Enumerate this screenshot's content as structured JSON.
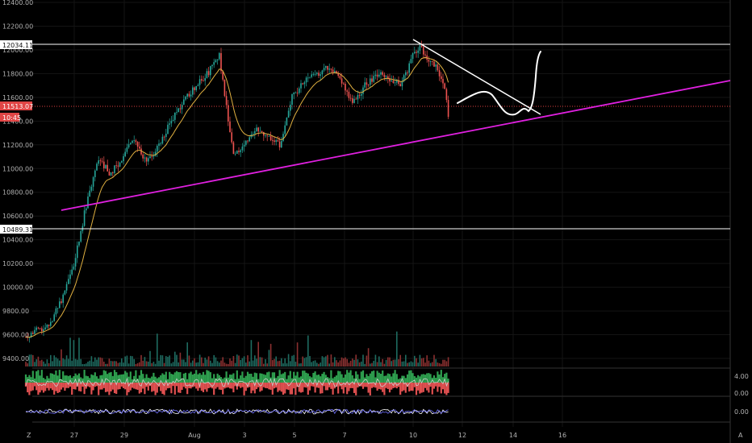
{
  "chart_data": {
    "type": "candlestick",
    "y_ticks": [
      "12400.00",
      "12200.00",
      "12000.00",
      "11800.00",
      "11600.00",
      "11400.00",
      "11200.00",
      "11000.00",
      "10800.00",
      "10600.00",
      "10400.00",
      "10200.00",
      "10000.00",
      "9800.00",
      "9600.00",
      "9400.00"
    ],
    "x_ticks": [
      "27",
      "29",
      "Aug",
      "3",
      "5",
      "7",
      "10",
      "12",
      "14",
      "16"
    ],
    "level_labels": {
      "upper": "12034.11",
      "current": "11513.07",
      "timer": "10:45",
      "lower": "10489.31"
    },
    "indicator1_ticks": [
      "4.00",
      "0.00"
    ],
    "indicator2_ticks": [
      "0.00"
    ],
    "corner_labels": {
      "left": "Z",
      "right": "A"
    },
    "price_path": [
      [
        "Jul 25",
        9580
      ],
      [
        "Jul 26",
        9700
      ],
      [
        "Jul 26.5",
        9900
      ],
      [
        "Jul 27",
        10200
      ],
      [
        "Jul 27.5",
        10700
      ],
      [
        "Jul 28",
        11100
      ],
      [
        "Jul 28.5",
        10950
      ],
      [
        "Jul 29",
        11100
      ],
      [
        "Jul 29.5",
        11250
      ],
      [
        "Jul 30",
        11050
      ],
      [
        "Jul 30.5",
        11200
      ],
      [
        "Jul 31",
        11400
      ],
      [
        "Aug 1",
        11700
      ],
      [
        "Aug 1.5",
        11800
      ],
      [
        "Aug 2",
        11950
      ],
      [
        "Aug 2.3",
        11500
      ],
      [
        "Aug 2.6",
        11100
      ],
      [
        "Aug 3",
        11200
      ],
      [
        "Aug 3.5",
        11350
      ],
      [
        "Aug 4",
        11250
      ],
      [
        "Aug 4.5",
        11200
      ],
      [
        "Aug 5",
        11600
      ],
      [
        "Aug 5.5",
        11750
      ],
      [
        "Aug 6",
        11800
      ],
      [
        "Aug 6.5",
        11850
      ],
      [
        "Aug 7",
        11750
      ],
      [
        "Aug 7.5",
        11550
      ],
      [
        "Aug 8",
        11700
      ],
      [
        "Aug 8.5",
        11800
      ],
      [
        "Aug 9",
        11750
      ],
      [
        "Aug 9.5",
        11700
      ],
      [
        "Aug 10",
        11950
      ],
      [
        "Aug 10.3",
        12050
      ],
      [
        "Aug 10.6",
        11900
      ],
      [
        "Aug 11",
        11850
      ],
      [
        "Aug 11.3",
        11700
      ],
      [
        "Aug 11.5",
        11350
      ]
    ]
  }
}
